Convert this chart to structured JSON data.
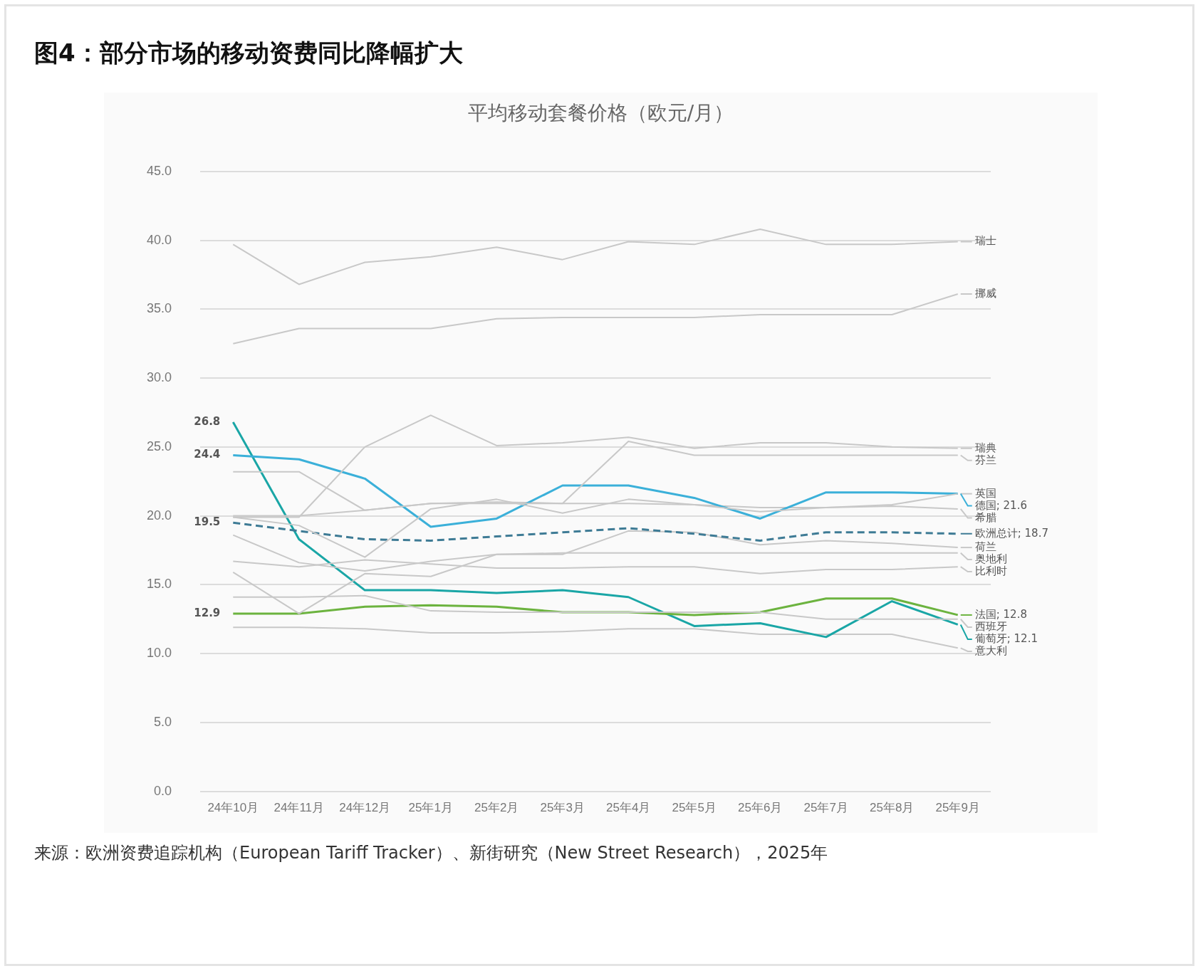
{
  "chart_data": {
    "type": "line",
    "title": "图4：部分市场的移动资费同比降幅扩大",
    "subtitle": "平均移动套餐价格（欧元/月）",
    "categories": [
      "24年10月",
      "24年11月",
      "24年12月",
      "25年1月",
      "25年2月",
      "25年3月",
      "25年4月",
      "25年5月",
      "25年6月",
      "25年7月",
      "25年8月",
      "25年9月"
    ],
    "series": [
      {
        "name": "瑞士",
        "color": "#c8c8c8",
        "values": [
          39.7,
          36.8,
          38.4,
          38.8,
          39.5,
          38.6,
          39.9,
          39.7,
          40.8,
          39.7,
          39.7,
          39.9
        ]
      },
      {
        "name": "挪威",
        "color": "#c8c8c8",
        "values": [
          32.5,
          33.6,
          33.6,
          33.6,
          34.3,
          34.4,
          34.4,
          34.4,
          34.6,
          34.6,
          34.6,
          36.1
        ]
      },
      {
        "name": "瑞典",
        "color": "#c8c8c8",
        "values": [
          19.9,
          19.9,
          25.0,
          27.3,
          25.1,
          25.3,
          25.7,
          24.9,
          25.3,
          25.3,
          25.0,
          24.9
        ]
      },
      {
        "name": "芬兰",
        "color": "#c8c8c8",
        "values": [
          23.2,
          23.2,
          20.4,
          20.9,
          20.9,
          20.9,
          25.4,
          24.4,
          24.4,
          24.4,
          24.4,
          24.4
        ]
      },
      {
        "name": "英国",
        "color": "#c8c8c8",
        "values": [
          19.9,
          19.3,
          17.0,
          20.5,
          21.2,
          20.2,
          21.2,
          20.8,
          20.3,
          20.6,
          20.8,
          21.6
        ]
      },
      {
        "name": "德国; 21.6",
        "color": "#3bb0d9",
        "value_labels": [
          "24.4",
          null,
          null,
          null,
          null,
          null,
          null,
          null,
          null,
          null,
          null,
          null
        ],
        "values": [
          24.4,
          24.1,
          22.7,
          19.2,
          19.8,
          22.2,
          22.2,
          21.3,
          19.8,
          21.7,
          21.7,
          21.6
        ]
      },
      {
        "name": "希腊",
        "color": "#c8c8c8",
        "values": [
          20.0,
          20.0,
          20.4,
          20.9,
          21.0,
          20.9,
          20.9,
          20.8,
          20.6,
          20.6,
          20.7,
          20.5
        ]
      },
      {
        "name": "欧洲总计; 18.7",
        "color": "#3e7b95",
        "line_style": "dashed",
        "value_labels": [
          "19.5",
          null,
          null,
          null,
          null,
          null,
          null,
          null,
          null,
          null,
          null,
          null
        ],
        "values": [
          19.5,
          18.9,
          18.3,
          18.2,
          18.5,
          18.8,
          19.1,
          18.7,
          18.2,
          18.8,
          18.8,
          18.7
        ]
      },
      {
        "name": "荷兰",
        "color": "#c8c8c8",
        "values": [
          15.9,
          12.9,
          15.8,
          15.6,
          17.2,
          17.2,
          18.9,
          18.8,
          17.9,
          18.2,
          18.0,
          17.7
        ]
      },
      {
        "name": "奥地利",
        "color": "#c8c8c8",
        "values": [
          18.6,
          16.6,
          16.0,
          16.7,
          17.2,
          17.3,
          17.3,
          17.3,
          17.3,
          17.3,
          17.3,
          17.3
        ]
      },
      {
        "name": "比利时",
        "color": "#c8c8c8",
        "values": [
          16.7,
          16.3,
          16.8,
          16.5,
          16.2,
          16.2,
          16.3,
          16.3,
          15.8,
          16.1,
          16.1,
          16.3
        ]
      },
      {
        "name": "西班牙",
        "color": "#c8c8c8",
        "values": [
          14.1,
          14.1,
          14.2,
          13.1,
          13.0,
          13.0,
          13.0,
          13.0,
          13.0,
          12.5,
          12.5,
          12.5
        ]
      },
      {
        "name": "法国; 12.8",
        "color": "#6cb33f",
        "value_labels": [
          "12.9",
          null,
          null,
          null,
          null,
          null,
          null,
          null,
          null,
          null,
          null,
          null
        ],
        "values": [
          12.9,
          12.9,
          13.4,
          13.5,
          13.4,
          13.0,
          13.0,
          12.8,
          13.0,
          14.0,
          14.0,
          12.8
        ]
      },
      {
        "name": "葡萄牙; 12.1",
        "color": "#1aa6a6",
        "value_labels": [
          "26.8",
          null,
          null,
          null,
          null,
          null,
          null,
          null,
          null,
          null,
          null,
          null
        ],
        "values": [
          26.8,
          18.3,
          14.6,
          14.6,
          14.4,
          14.6,
          14.1,
          12.0,
          12.2,
          11.2,
          13.8,
          12.1
        ]
      },
      {
        "name": "意大利",
        "color": "#c8c8c8",
        "values": [
          11.9,
          11.9,
          11.8,
          11.5,
          11.5,
          11.6,
          11.8,
          11.8,
          11.4,
          11.4,
          11.4,
          10.4
        ]
      }
    ],
    "ylim": [
      0,
      45
    ],
    "yticks": [
      {
        "value": 0,
        "label": "0.0"
      },
      {
        "value": 5,
        "label": "5.0"
      },
      {
        "value": 10,
        "label": "10.0"
      },
      {
        "value": 15,
        "label": "15.0"
      },
      {
        "value": 20,
        "label": "20.0"
      },
      {
        "value": 25,
        "label": "25.0"
      },
      {
        "value": 30,
        "label": "30.0"
      },
      {
        "value": 35,
        "label": "35.0"
      },
      {
        "value": 40,
        "label": "40.0"
      },
      {
        "value": 45,
        "label": "45.0"
      }
    ],
    "grid": "y",
    "legend": "right",
    "marker": "none",
    "annotations": [
      "来源：欧洲资费追踪机构（European Tariff Tracker）、新街研究（New Street Research），2025年"
    ]
  }
}
